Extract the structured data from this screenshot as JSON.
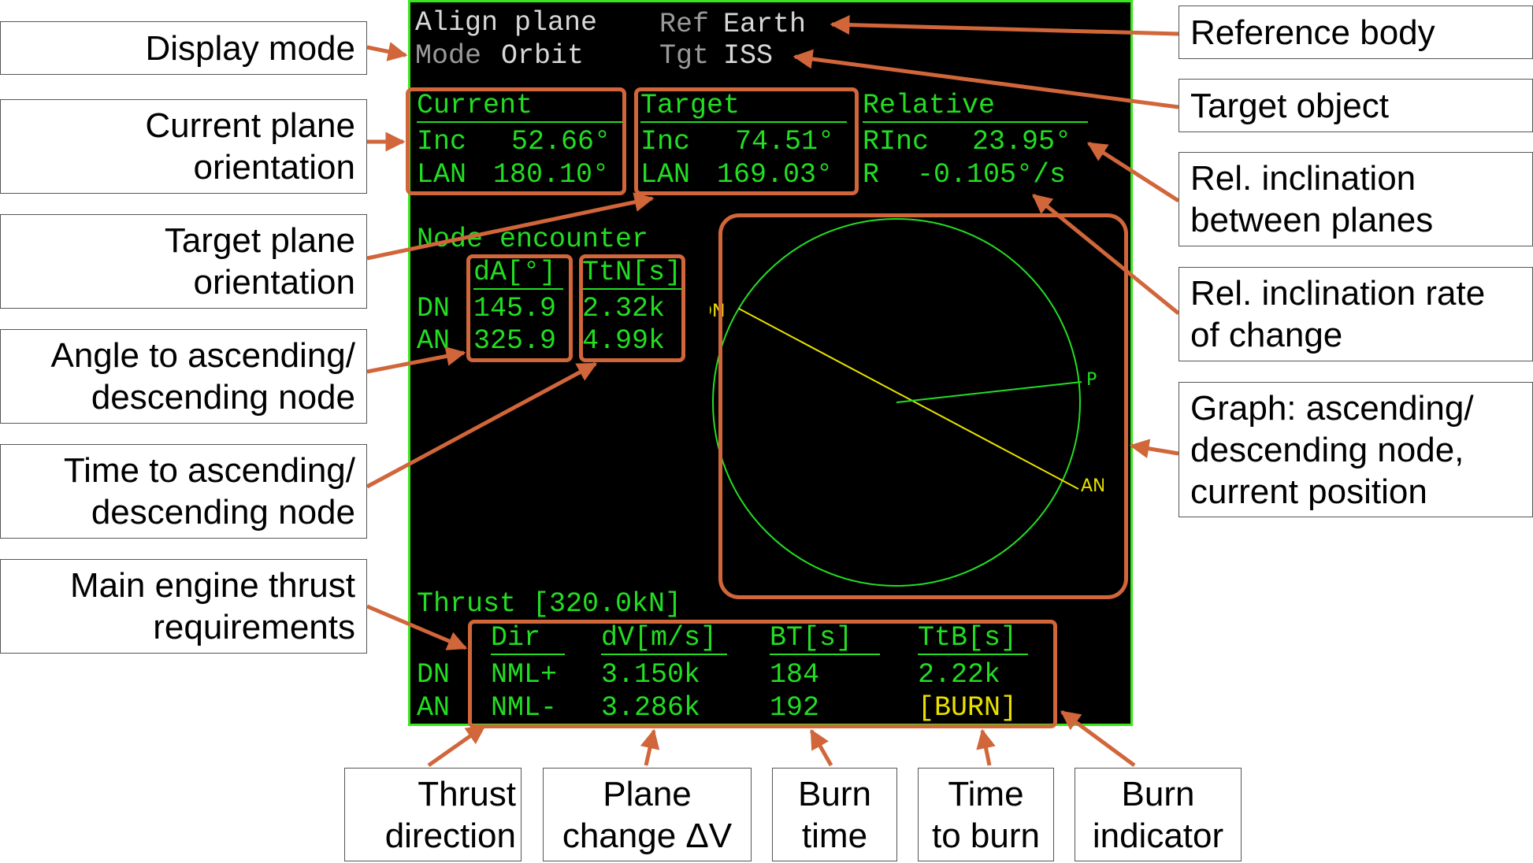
{
  "mfd": {
    "header": {
      "title": "Align plane",
      "ref_label": "Ref",
      "ref_value": "Earth",
      "mode_label": "Mode",
      "mode_value": "Orbit",
      "tgt_label": "Tgt",
      "tgt_value": "ISS"
    },
    "current": {
      "heading": "Current",
      "inc_label": "Inc",
      "inc_value": "52.66°",
      "lan_label": "LAN",
      "lan_value": "180.10°"
    },
    "target": {
      "heading": "Target",
      "inc_label": "Inc",
      "inc_value": "74.51°",
      "lan_label": "LAN",
      "lan_value": "169.03°"
    },
    "relative": {
      "heading": "Relative",
      "rinc_label": "RInc",
      "rinc_value": "23.95°",
      "r_label": "R",
      "r_value": "-0.105°/s"
    },
    "node_encounter": {
      "heading": "Node encounter",
      "col_da": "dA[°]",
      "col_ttn": "TtN[s]",
      "rows": [
        {
          "label": "DN",
          "da": "145.9",
          "ttn": "2.32k"
        },
        {
          "label": "AN",
          "da": "325.9",
          "ttn": "4.99k"
        }
      ]
    },
    "graph": {
      "dn_label": "DN",
      "an_label": "AN",
      "p_label": "P"
    },
    "thrust": {
      "heading": "Thrust [320.0kN]",
      "columns": {
        "dir": "Dir",
        "dv": "dV[m/s]",
        "bt": "BT[s]",
        "ttb": "TtB[s]"
      },
      "rows": [
        {
          "label": "DN",
          "dir": "NML+",
          "dv": "3.150k",
          "bt": "184",
          "ttb": "2.22k"
        },
        {
          "label": "AN",
          "dir": "NML-",
          "dv": "3.286k",
          "bt": "192",
          "ttb": "[BURN]"
        }
      ]
    }
  },
  "callouts": {
    "display_mode": "Display mode",
    "current_plane": [
      "Current plane",
      "orientation"
    ],
    "target_plane": [
      "Target plane",
      "orientation"
    ],
    "angle_node": [
      "Angle to ascending/",
      "descending node"
    ],
    "time_node": [
      "Time to ascending/",
      "descending node"
    ],
    "thrust_req": [
      "Main engine thrust",
      "requirements"
    ],
    "reference_body": "Reference body",
    "target_object": "Target object",
    "rel_inclination": [
      "Rel. inclination",
      "between planes"
    ],
    "rel_rate": [
      "Rel. inclination rate",
      "of change"
    ],
    "graph": [
      "Graph: ascending/",
      "descending node,",
      "current position"
    ],
    "thrust_direction": [
      "Thrust",
      "direction"
    ],
    "plane_change": [
      "Plane",
      "change ΔV"
    ],
    "burn_time": [
      "Burn",
      "time"
    ],
    "time_to_burn": [
      "Time",
      "to burn"
    ],
    "burn_indicator": [
      "Burn",
      "indicator"
    ]
  },
  "colors": {
    "screen_bg": "#000000",
    "screen_border": "#39e61a",
    "text_green": "#23dd23",
    "text_white": "#d8d8d8",
    "text_yellow": "#e8e000",
    "highlight": "#d0663a"
  }
}
